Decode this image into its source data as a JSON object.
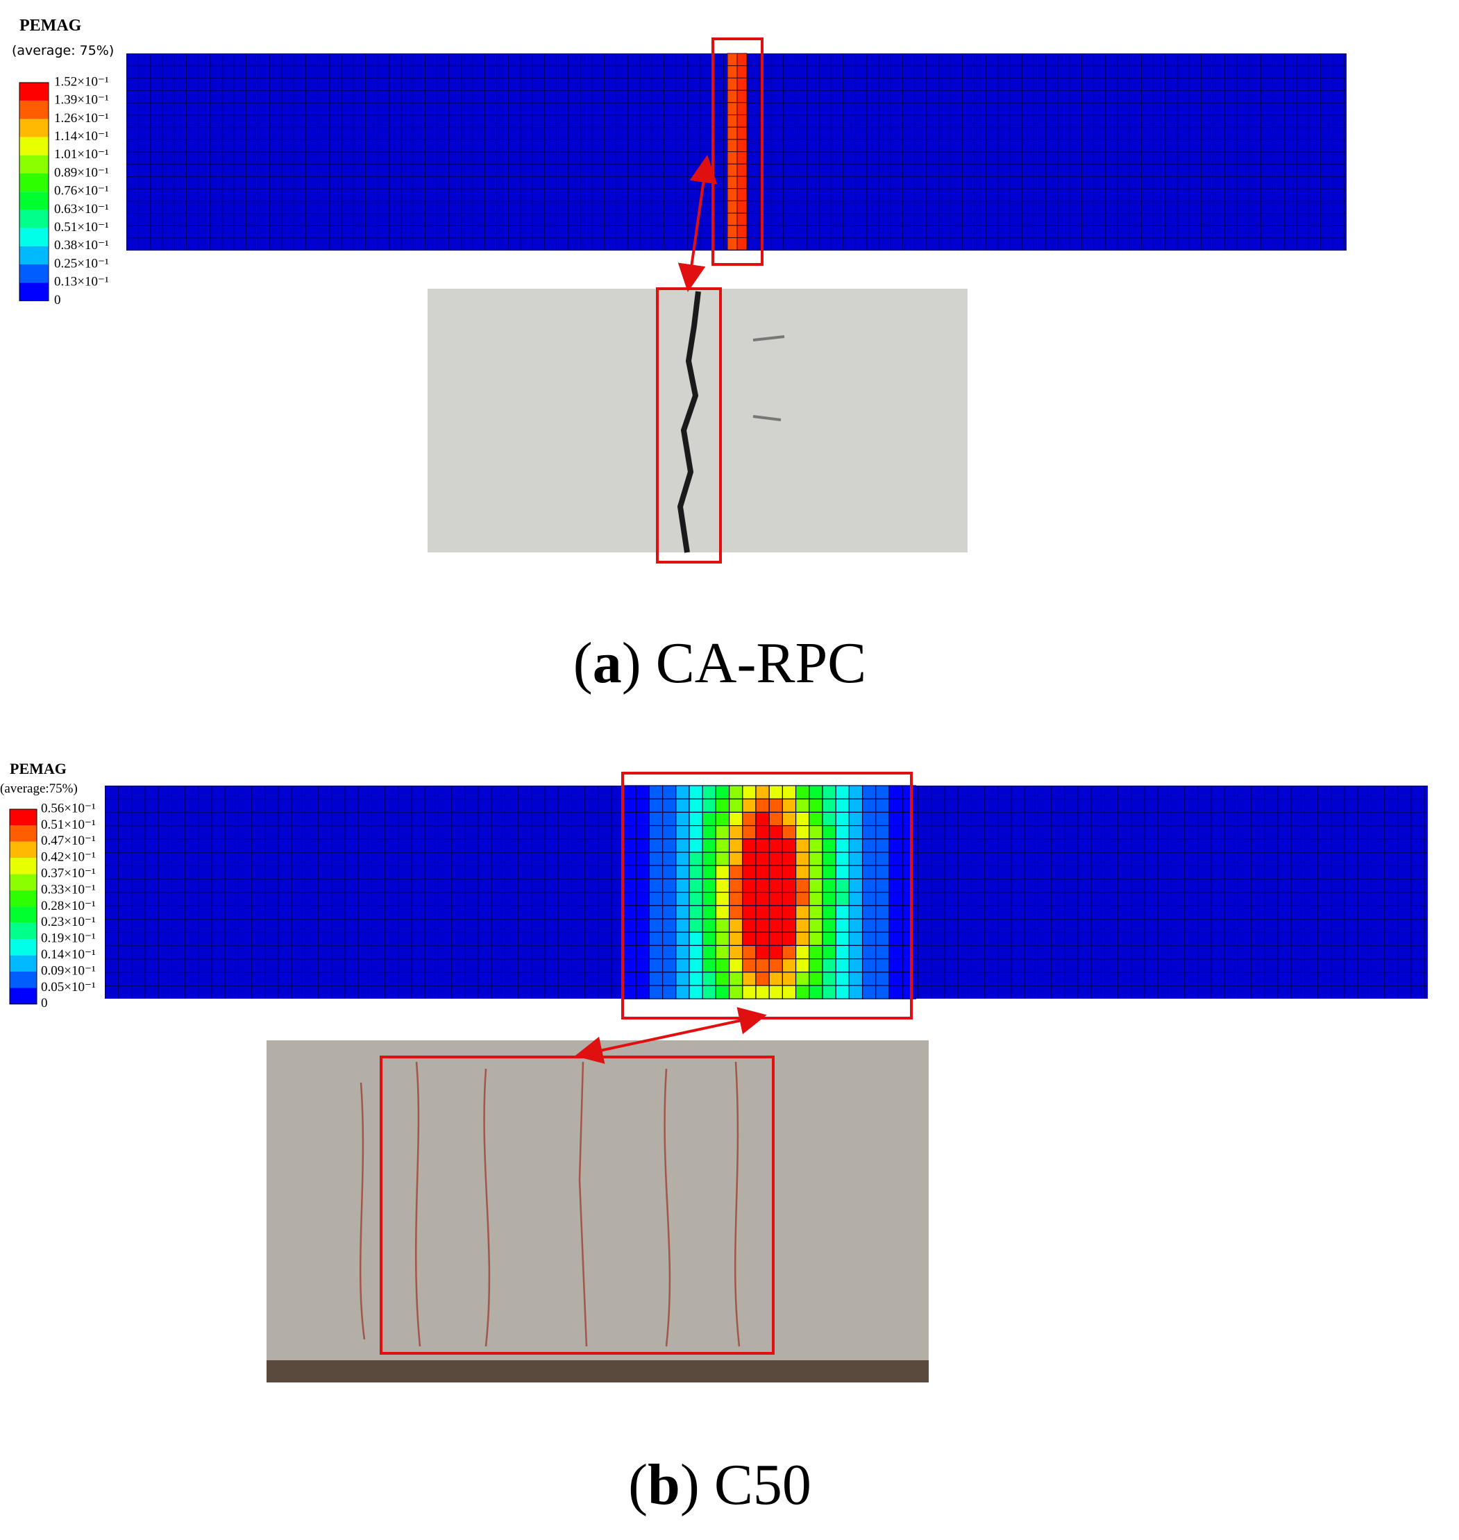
{
  "panels": [
    {
      "legend": {
        "title": "PEMAG",
        "subtitle": "(average: 75%)",
        "labels": [
          "1.52×10⁻¹",
          "1.39×10⁻¹",
          "1.26×10⁻¹",
          "1.14×10⁻¹",
          "1.01×10⁻¹",
          "0.89×10⁻¹",
          "0.76×10⁻¹",
          "0.63×10⁻¹",
          "0.51×10⁻¹",
          "0.38×10⁻¹",
          "0.25×10⁻¹",
          "0.13×10⁻¹",
          "0"
        ]
      },
      "caption": [
        "(",
        "a",
        ") CA-RPC"
      ]
    },
    {
      "legend": {
        "title": "PEMAG",
        "subtitle": "(average:75%)",
        "labels": [
          "0.56×10⁻¹",
          "0.51×10⁻¹",
          "0.47×10⁻¹",
          "0.42×10⁻¹",
          "0.37×10⁻¹",
          "0.33×10⁻¹",
          "0.28×10⁻¹",
          "0.23×10⁻¹",
          "0.19×10⁻¹",
          "0.14×10⁻¹",
          "0.09×10⁻¹",
          "0.05×10⁻¹",
          "0"
        ]
      },
      "caption": [
        "(",
        "b",
        ") C50"
      ]
    }
  ]
}
